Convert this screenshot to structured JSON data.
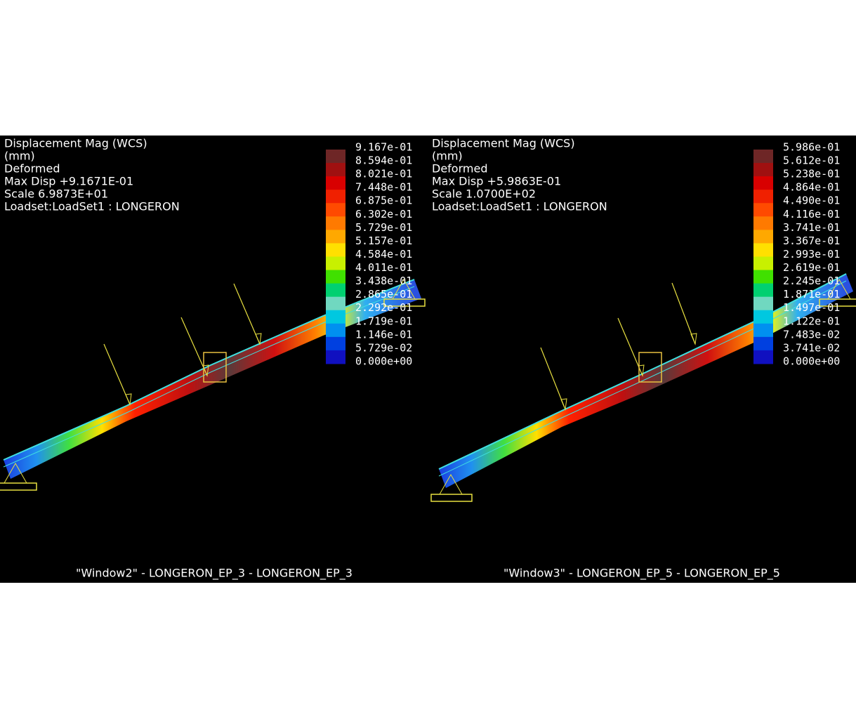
{
  "panels": [
    {
      "header": [
        "Displacement Mag (WCS)",
        "(mm)",
        "Deformed",
        "Max Disp   +9.1671E-01",
        "Scale  6.9873E+01",
        "Loadset:LoadSet1  :   LONGERON"
      ],
      "legend": [
        "9.167e-01",
        "8.594e-01",
        "8.021e-01",
        "7.448e-01",
        "6.875e-01",
        "6.302e-01",
        "5.729e-01",
        "5.157e-01",
        "4.584e-01",
        "4.011e-01",
        "3.438e-01",
        "2.865e-01",
        "2.292e-01",
        "1.719e-01",
        "1.146e-01",
        "5.729e-02",
        "0.000e+00"
      ],
      "footer": "\"Window2\"  -  LONGERON_EP_3  -  LONGERON_EP_3"
    },
    {
      "header": [
        "Displacement Mag (WCS)",
        "(mm)",
        "Deformed",
        "Max Disp   +5.9863E-01",
        "Scale  1.0700E+02",
        "Loadset:LoadSet1  :   LONGERON"
      ],
      "legend": [
        "5.986e-01",
        "5.612e-01",
        "5.238e-01",
        "4.864e-01",
        "4.490e-01",
        "4.116e-01",
        "3.741e-01",
        "3.367e-01",
        "2.993e-01",
        "2.619e-01",
        "2.245e-01",
        "1.871e-01",
        "1.497e-01",
        "1.122e-01",
        "7.483e-02",
        "3.741e-02",
        "0.000e+00"
      ],
      "footer": "\"Window3\"  -  LONGERON_EP_5  -  LONGERON_EP_5"
    }
  ]
}
